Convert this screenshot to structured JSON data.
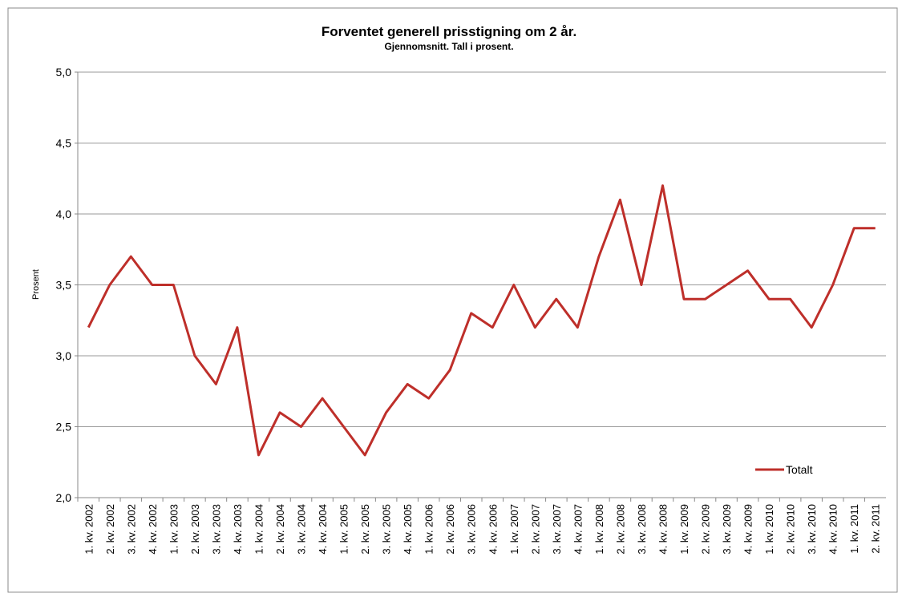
{
  "chart_data": {
    "type": "line",
    "title": "Forventet generell prisstigning om 2 år.",
    "subtitle": "Gjennomsnitt.  Tall i prosent.",
    "y_label": "Prosent",
    "categories": [
      "1. kv. 2002",
      "2. kv. 2002",
      "3. kv. 2002",
      "4. kv. 2002",
      "1. kv. 2003",
      "2. kv. 2003",
      "3. kv. 2003",
      "4. kv. 2003",
      "1. kv. 2004",
      "2. kv. 2004",
      "3. kv. 2004",
      "4. kv. 2004",
      "1. kv. 2005",
      "2. kv. 2005",
      "3. kv. 2005",
      "4. kv. 2005",
      "1. kv. 2006",
      "2. kv. 2006",
      "3. kv. 2006",
      "4. kv. 2006",
      "1. kv. 2007",
      "2. kv. 2007",
      "3. kv. 2007",
      "4. kv. 2007",
      "1. kv. 2008",
      "2. kv. 2008",
      "3. kv. 2008",
      "4. kv. 2008",
      "1. kv. 2009",
      "2. kv. 2009",
      "3. kv. 2009",
      "4. kv. 2009",
      "1. kv. 2010",
      "2. kv. 2010",
      "3. kv. 2010",
      "4. kv. 2010",
      "1. kv. 2011",
      "2. kv. 2011"
    ],
    "series": [
      {
        "name": "Totalt",
        "color": "#be2f2a",
        "values": [
          3.2,
          3.5,
          3.7,
          3.5,
          3.5,
          3.0,
          2.8,
          3.2,
          2.3,
          2.6,
          2.5,
          2.7,
          2.5,
          2.3,
          2.6,
          2.8,
          2.7,
          2.9,
          3.3,
          3.2,
          3.5,
          3.2,
          3.4,
          3.2,
          3.7,
          4.1,
          3.5,
          4.2,
          3.4,
          3.4,
          3.5,
          3.6,
          3.4,
          3.4,
          3.2,
          3.5,
          3.9,
          3.9
        ]
      }
    ],
    "ylim": [
      2.0,
      5.0
    ],
    "yticks": [
      {
        "value": 2.0,
        "label": "2,0"
      },
      {
        "value": 2.5,
        "label": "2,5"
      },
      {
        "value": 3.0,
        "label": "3,0"
      },
      {
        "value": 3.5,
        "label": "3,5"
      },
      {
        "value": 4.0,
        "label": "4,0"
      },
      {
        "value": 4.5,
        "label": "4,5"
      },
      {
        "value": 5.0,
        "label": "5,0"
      }
    ],
    "grid": true,
    "legend": "lower right"
  }
}
